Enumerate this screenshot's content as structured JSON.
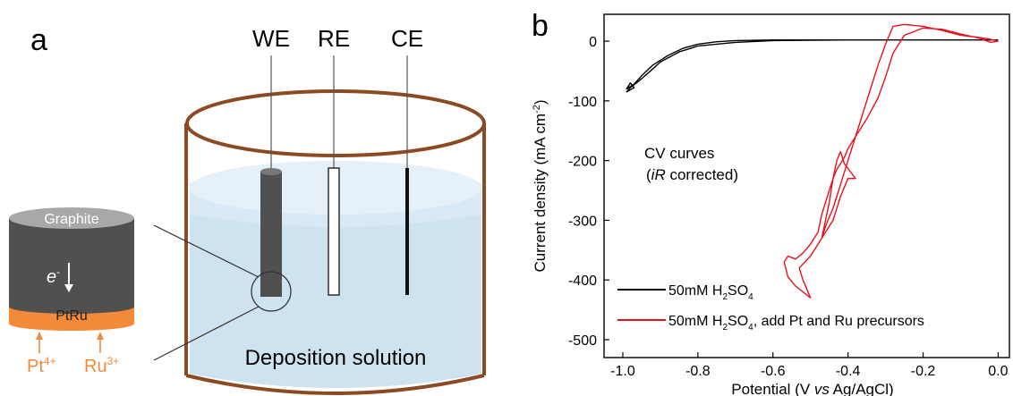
{
  "panel_a": {
    "label": "a",
    "electrodes": {
      "we": "WE",
      "re": "RE",
      "ce": "CE"
    },
    "solution_label": "Deposition solution",
    "inset": {
      "top_label": "Graphite",
      "electron_label": "e",
      "electron_sup": "-",
      "bottom_label": "PtRu",
      "ion1": "Pt",
      "ion1_sup": "4+",
      "ion2": "Ru",
      "ion2_sup": "3+"
    }
  },
  "panel_b": {
    "label": "b",
    "annotation_line1": "CV curves",
    "annotation_line2_italic": "iR",
    "annotation_line2_rest": " corrected)",
    "annotation_line2_open": "(",
    "ylabel_main": "Current density (mA cm",
    "ylabel_sup": "-2",
    "ylabel_close": ")",
    "xlabel_main": "Potential (V ",
    "xlabel_italic": "vs",
    "xlabel_rest": " Ag/AgCl)",
    "legend": [
      {
        "main": "50mM H",
        "sub": "2",
        "main2": "SO",
        "sub2": "4",
        "tail": ""
      },
      {
        "main": "50mM H",
        "sub": "2",
        "main2": "SO",
        "sub2": "4",
        "tail": ", add Pt and Ru precursors"
      }
    ]
  },
  "colors": {
    "series_black": "#000000",
    "series_red": "#e8101a",
    "vessel_brown": "#8b4a22",
    "solution_blue": "#cfe2f0",
    "graphite_grey": "#505050",
    "ptru_orange": "#f28a3a",
    "ion_orange": "#ef8a3c"
  },
  "chart_data": {
    "type": "line",
    "xlim": [
      -1.05,
      0.03
    ],
    "ylim": [
      -530,
      45
    ],
    "x_ticks": [
      -1.0,
      -0.8,
      -0.6,
      -0.4,
      -0.2,
      0.0
    ],
    "x_tick_labels": [
      "-1.0",
      "-0.8",
      "-0.6",
      "-0.4",
      "-0.2",
      "0.0"
    ],
    "y_ticks": [
      0,
      -100,
      -200,
      -300,
      -400,
      -500
    ],
    "y_tick_labels": [
      "0",
      "-100",
      "-200",
      "-300",
      "-400",
      "-500"
    ],
    "grid": false,
    "legend_position": "bottom-left",
    "series": [
      {
        "color_key": "series_black",
        "x": [
          0.0,
          -0.2,
          -0.4,
          -0.6,
          -0.7,
          -0.8,
          -0.85,
          -0.9,
          -0.93,
          -0.96,
          -0.98,
          -0.99,
          -0.97,
          -0.98,
          -0.99,
          -0.97,
          -0.95,
          -0.92,
          -0.88,
          -0.84,
          -0.8,
          -0.75,
          -0.7,
          -0.6,
          -0.4,
          -0.2,
          0.0
        ],
        "y": [
          2,
          2,
          2,
          1,
          -2,
          -8,
          -18,
          -35,
          -52,
          -68,
          -78,
          -85,
          -78,
          -70,
          -80,
          -72,
          -58,
          -40,
          -24,
          -12,
          -5,
          -1,
          1,
          2,
          2,
          2,
          2
        ]
      },
      {
        "color_key": "series_red",
        "x": [
          0.0,
          -0.02,
          -0.05,
          -0.1,
          -0.15,
          -0.2,
          -0.25,
          -0.28,
          -0.3,
          -0.32,
          -0.35,
          -0.38,
          -0.4,
          -0.41,
          -0.42,
          -0.43,
          -0.44,
          -0.45,
          -0.46,
          -0.47,
          -0.48,
          -0.5,
          -0.52,
          -0.54,
          -0.56,
          -0.57,
          -0.56,
          -0.54,
          -0.52,
          -0.5,
          -0.52,
          -0.53,
          -0.5,
          -0.48,
          -0.46,
          -0.44,
          -0.42,
          -0.4,
          -0.38,
          -0.41,
          -0.42,
          -0.43,
          -0.44,
          -0.45,
          -0.46,
          -0.47,
          -0.46,
          -0.44,
          -0.42,
          -0.4,
          -0.38,
          -0.36,
          -0.34,
          -0.32,
          -0.3,
          -0.29,
          -0.28,
          -0.25,
          -0.2,
          -0.15,
          -0.1,
          -0.05,
          -0.02,
          0.0
        ],
        "y": [
          0,
          -2,
          5,
          12,
          20,
          22,
          10,
          -20,
          -60,
          -95,
          -130,
          -160,
          -180,
          -195,
          -205,
          -215,
          -230,
          -250,
          -270,
          -290,
          -320,
          -340,
          -355,
          -365,
          -360,
          -370,
          -395,
          -410,
          -420,
          -430,
          -400,
          -380,
          -360,
          -340,
          -320,
          -300,
          -260,
          -230,
          -230,
          -205,
          -185,
          -200,
          -230,
          -270,
          -300,
          -330,
          -310,
          -280,
          -240,
          -200,
          -160,
          -120,
          -80,
          -40,
          -5,
          10,
          25,
          28,
          25,
          18,
          10,
          6,
          3,
          0
        ]
      }
    ]
  }
}
